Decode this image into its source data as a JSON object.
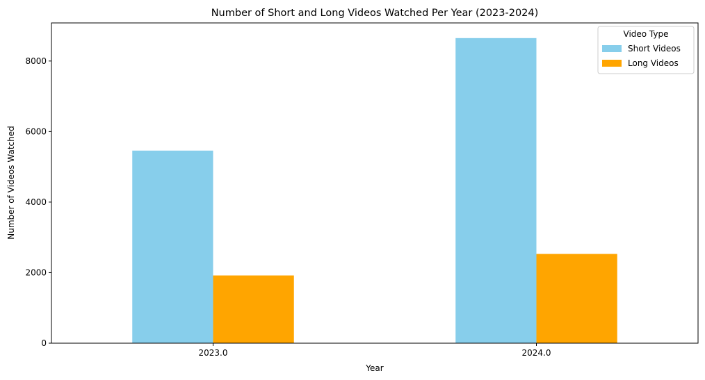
{
  "chart_data": {
    "type": "bar",
    "title": "Number of Short and Long Videos Watched Per Year (2023-2024)",
    "xlabel": "Year",
    "ylabel": "Number of Videos Watched",
    "categories": [
      "2023.0",
      "2024.0"
    ],
    "series": [
      {
        "name": "Short Videos",
        "values": [
          5460,
          8650
        ],
        "color": "#87ceeb"
      },
      {
        "name": "Long Videos",
        "values": [
          1920,
          2530
        ],
        "color": "#ffa500"
      }
    ],
    "ylim": [
      0,
      9080
    ],
    "yticks": [
      0,
      2000,
      4000,
      6000,
      8000
    ],
    "ytick_labels": [
      "0",
      "2000",
      "4000",
      "6000",
      "8000"
    ],
    "legend": {
      "title": "Video Type",
      "placement": "top-right"
    },
    "grid": false
  }
}
